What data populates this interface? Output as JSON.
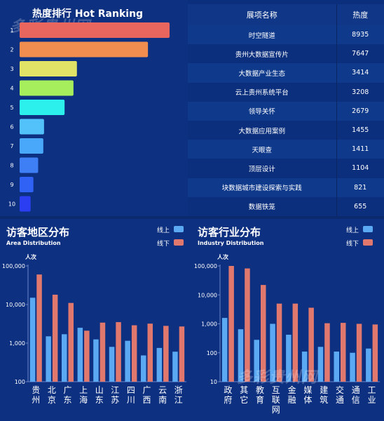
{
  "ranking": {
    "title": "热度排行  Hot Ranking",
    "watermark": "多彩贵州网",
    "ranks": [
      "1",
      "2",
      "3",
      "4",
      "5",
      "6",
      "7",
      "8",
      "9",
      "10"
    ],
    "bar_colors": [
      "#e8665d",
      "#f08d4f",
      "#e0e366",
      "#a6ee5c",
      "#2cf0ec",
      "#53c2fb",
      "#4aa8fb",
      "#3f7ff6",
      "#2f62f5",
      "#2b3ef2"
    ]
  },
  "table": {
    "col_name": "展项名称",
    "col_heat": "热度",
    "rows": [
      {
        "name": "时空隧道",
        "heat": "8935"
      },
      {
        "name": "贵州大数据宣传片",
        "heat": "7647"
      },
      {
        "name": "大数据产业生态",
        "heat": "3414"
      },
      {
        "name": "云上贵州系统平台",
        "heat": "3208"
      },
      {
        "name": "领导关怀",
        "heat": "2679"
      },
      {
        "name": "大数据应用案例",
        "heat": "1455"
      },
      {
        "name": "天眼查",
        "heat": "1411"
      },
      {
        "name": "顶层设计",
        "heat": "1104"
      },
      {
        "name": "块数据城市建设探索与实践",
        "heat": "821"
      },
      {
        "name": "数据铁笼",
        "heat": "655"
      }
    ]
  },
  "area": {
    "title": "访客地区分布",
    "subtitle": "Area Distribution",
    "legend_online": "线上",
    "legend_offline": "线下"
  },
  "industry": {
    "title": "访客行业分布",
    "subtitle": "Industry Distribution",
    "legend_online": "线上",
    "legend_offline": "线下",
    "watermark": "多彩贵州网"
  },
  "colors": {
    "online": "#5aa9f2",
    "offline": "#e0786e",
    "background": "#0b2a6e"
  },
  "chart_data": [
    {
      "type": "bar",
      "orientation": "horizontal",
      "title": "热度排行  Hot Ranking",
      "categories": [
        "时空隧道",
        "贵州大数据宣传片",
        "大数据产业生态",
        "云上贵州系统平台",
        "领导关怀",
        "大数据应用案例",
        "天眼查",
        "顶层设计",
        "块数据城市建设探索与实践",
        "数据铁笼"
      ],
      "values": [
        8935,
        7647,
        3414,
        3208,
        2679,
        1455,
        1411,
        1104,
        821,
        655
      ],
      "xlim": [
        0,
        9000
      ]
    },
    {
      "type": "bar",
      "title": "访客地区分布",
      "ylabel": "人次",
      "yscale": "log",
      "ylim": [
        100,
        100000
      ],
      "yticks": [
        "100",
        "1,000",
        "10,000",
        "100,000"
      ],
      "categories": [
        "贵州",
        "北京",
        "广东",
        "上海",
        "山东",
        "江苏",
        "四川",
        "广西",
        "云南",
        "浙江"
      ],
      "series": [
        {
          "name": "线上",
          "values": [
            15000,
            1500,
            1700,
            2500,
            1250,
            800,
            1150,
            480,
            750,
            600
          ]
        },
        {
          "name": "线下",
          "values": [
            60000,
            18000,
            11000,
            2100,
            3400,
            3500,
            2900,
            3200,
            2800,
            2700
          ]
        }
      ],
      "legend": "top-right"
    },
    {
      "type": "bar",
      "title": "访客行业分布",
      "ylabel": "人次",
      "yscale": "log",
      "ylim": [
        10,
        100000
      ],
      "yticks": [
        "10",
        "100",
        "1,000",
        "10,000",
        "100,000"
      ],
      "categories": [
        "政府",
        "其它",
        "教育",
        "互联网",
        "金融",
        "媒体",
        "建筑",
        "交通",
        "通信",
        "工业"
      ],
      "series": [
        {
          "name": "线上",
          "values": [
            1600,
            650,
            280,
            1000,
            420,
            110,
            160,
            110,
            100,
            140
          ]
        },
        {
          "name": "线下",
          "values": [
            100000,
            82000,
            22000,
            5000,
            5000,
            3600,
            1050,
            1080,
            1000,
            950
          ]
        }
      ],
      "legend": "top-right"
    }
  ]
}
